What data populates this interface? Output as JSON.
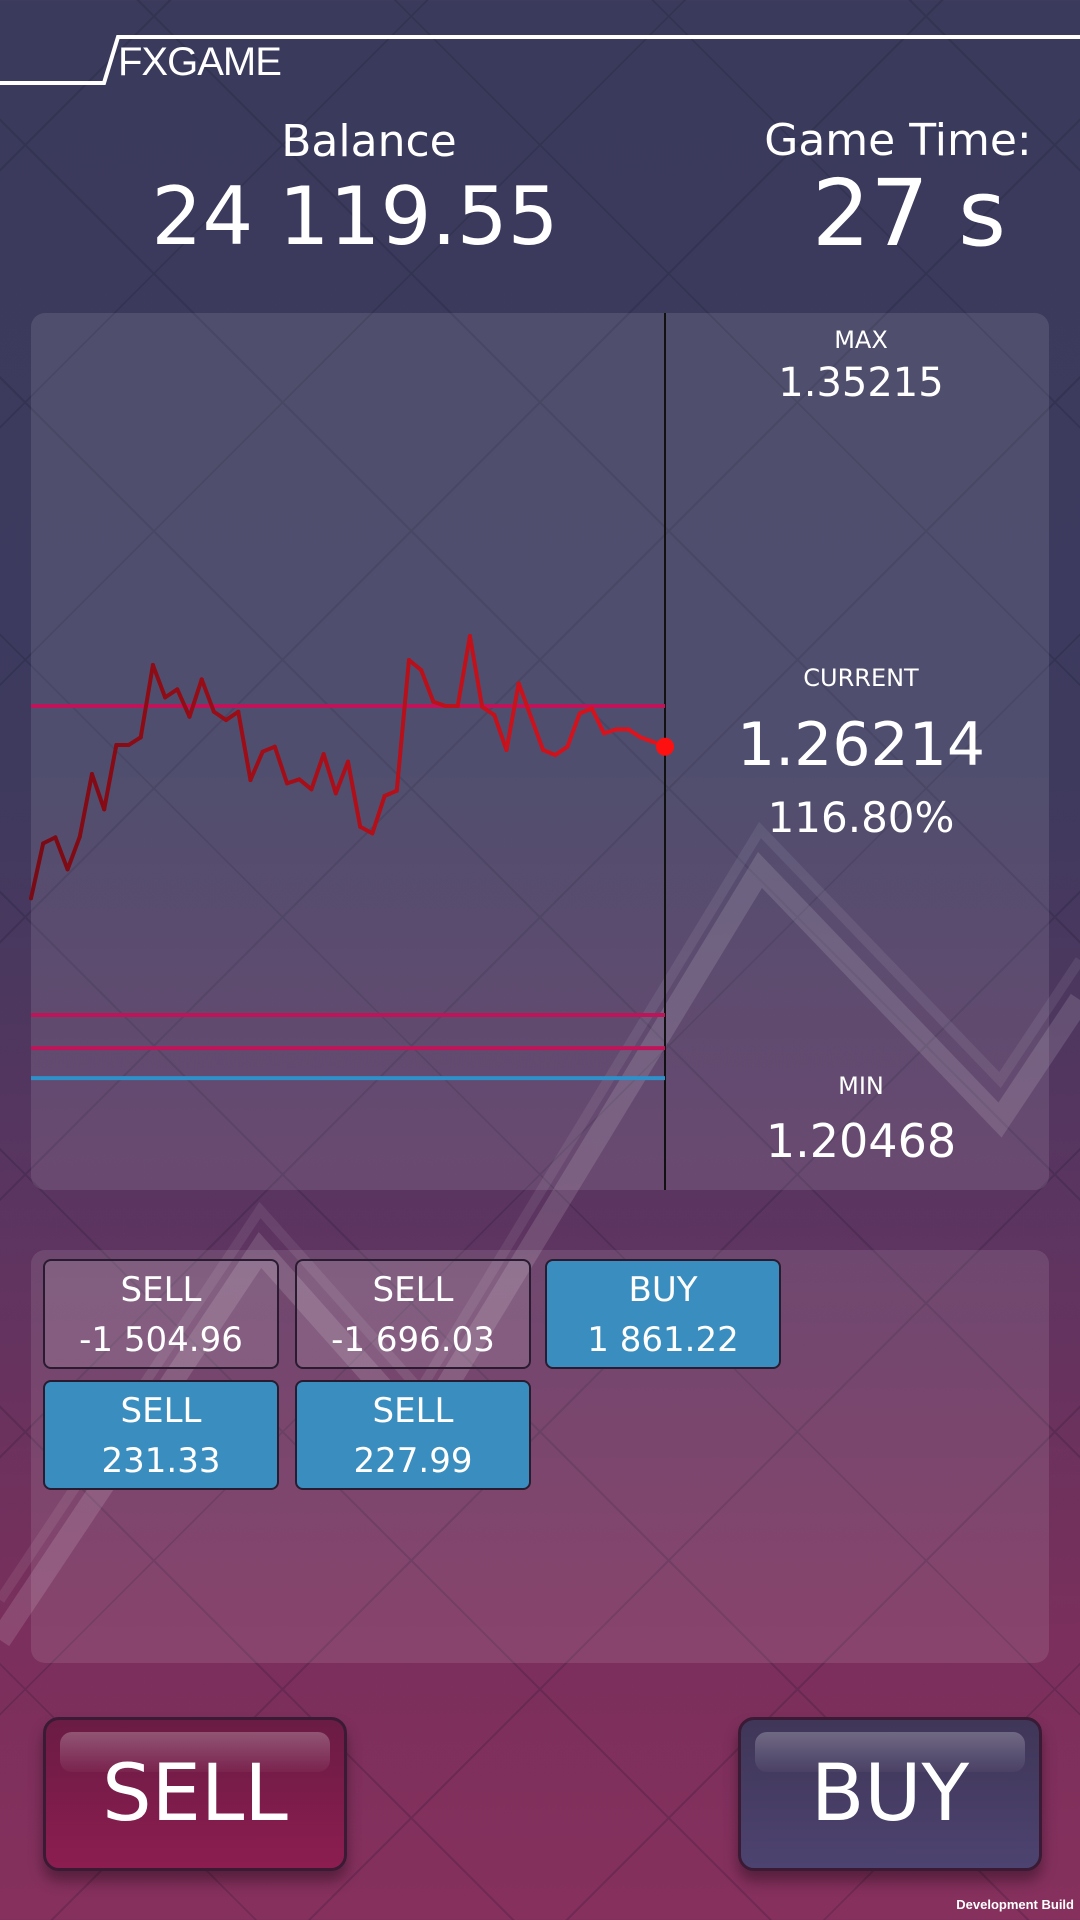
{
  "app": {
    "logo": "FXGAME",
    "dev_label": "Development Build"
  },
  "header": {
    "balance_label": "Balance",
    "balance_value": "24 119.55",
    "time_label": "Game Time:",
    "time_value": "27 s"
  },
  "price_panel": {
    "max_label": "MAX",
    "max_value": "1.35215",
    "current_label": "CURRENT",
    "current_value": "1.26214",
    "current_percent": "116.80%",
    "min_label": "MIN",
    "min_value": "1.20468"
  },
  "orders": [
    {
      "side": "SELL",
      "profit": "-1 504.96",
      "style": "neutral"
    },
    {
      "side": "SELL",
      "profit": "-1 696.03",
      "style": "neutral"
    },
    {
      "side": "BUY",
      "profit": "1 861.22",
      "style": "blue"
    },
    {
      "side": "SELL",
      "profit": "231.33",
      "style": "blue"
    },
    {
      "side": "SELL",
      "profit": "227.99",
      "style": "blue"
    }
  ],
  "actions": {
    "sell_label": "SELL",
    "buy_label": "BUY"
  },
  "colors": {
    "line_old": "#7a0a14",
    "line_new": "#e0141e",
    "current_dot": "#ff1010",
    "order_line_sell": "#c0145a",
    "order_line_buy": "#2f8fc8",
    "order_blue": "#3a8ebf"
  },
  "chart_data": {
    "type": "line",
    "prices": [
      1.23665,
      1.24589,
      1.2469,
      1.24152,
      1.24701,
      1.25755,
      1.25161,
      1.26242,
      1.26242,
      1.26371,
      1.27587,
      1.27043,
      1.27178,
      1.26718,
      1.27346,
      1.26802,
      1.26662,
      1.26802,
      1.25654,
      1.2613,
      1.26214,
      1.25598,
      1.25665,
      1.25497,
      1.26091,
      1.2543,
      1.25962,
      1.24869,
      1.24757,
      1.25385,
      1.25474,
      1.27671,
      1.27503,
      1.2697,
      1.26898,
      1.26898,
      1.28074,
      1.26886,
      1.26746,
      1.26158,
      1.27279,
      1.26718,
      1.26158,
      1.26074,
      1.26214,
      1.26774,
      1.26858,
      1.26438,
      1.26505,
      1.26505,
      1.26371,
      1.26298,
      1.26214
    ],
    "order_levels": [
      {
        "price": 1.26898,
        "side": "sell"
      },
      {
        "price": 1.21704,
        "side": "sell"
      },
      {
        "price": 1.21148,
        "side": "sell"
      },
      {
        "price": 1.20643,
        "side": "buy"
      }
    ],
    "current": 1.26214
  }
}
